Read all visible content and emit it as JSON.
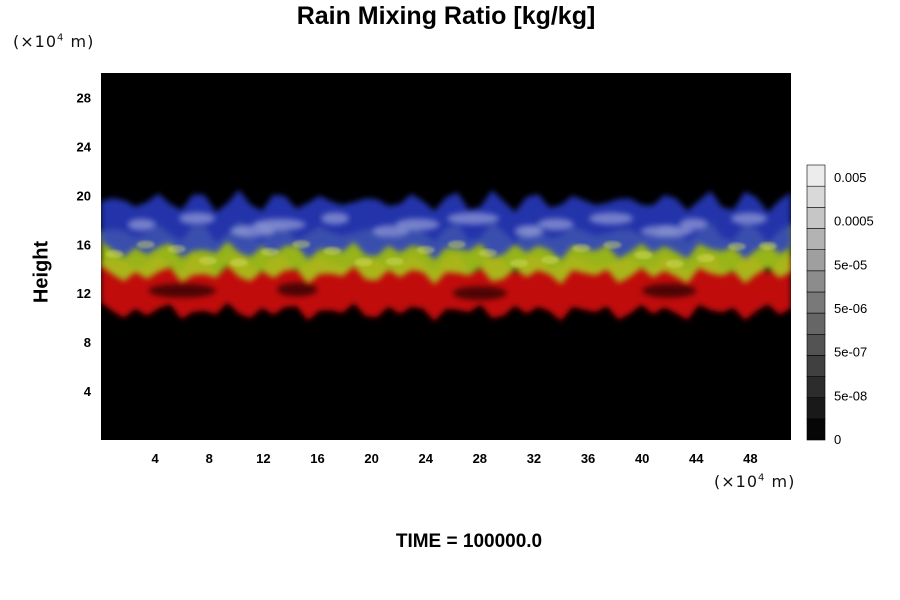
{
  "chart_data": {
    "type": "heatmap",
    "title": "Rain Mixing Ratio [kg/kg]",
    "xlabel": "",
    "ylabel": "Height",
    "x_unit": "(×10⁴ m)",
    "y_unit": "(×10⁴ m)",
    "xlim": [
      0,
      51
    ],
    "ylim": [
      0,
      30
    ],
    "x_ticks": [
      4,
      8,
      12,
      16,
      20,
      24,
      28,
      32,
      36,
      40,
      44,
      48
    ],
    "y_ticks": [
      4,
      8,
      12,
      16,
      20,
      24,
      28
    ],
    "background": "#000000",
    "colorbar": {
      "labels": [
        "0.005",
        "0.0005",
        "5e-05",
        "5e-06",
        "5e-07",
        "5e-08",
        "0"
      ],
      "levels": 13
    },
    "layers": [
      {
        "color": "#cc1010",
        "y_range": [
          10.5,
          14.5
        ]
      },
      {
        "color": "#a8c81e",
        "y_range": [
          13.5,
          17
        ]
      },
      {
        "color": "#2b3cc8",
        "y_range": [
          15.5,
          19.5
        ]
      }
    ]
  },
  "footer": {
    "time_label": "TIME = 100000.0"
  }
}
